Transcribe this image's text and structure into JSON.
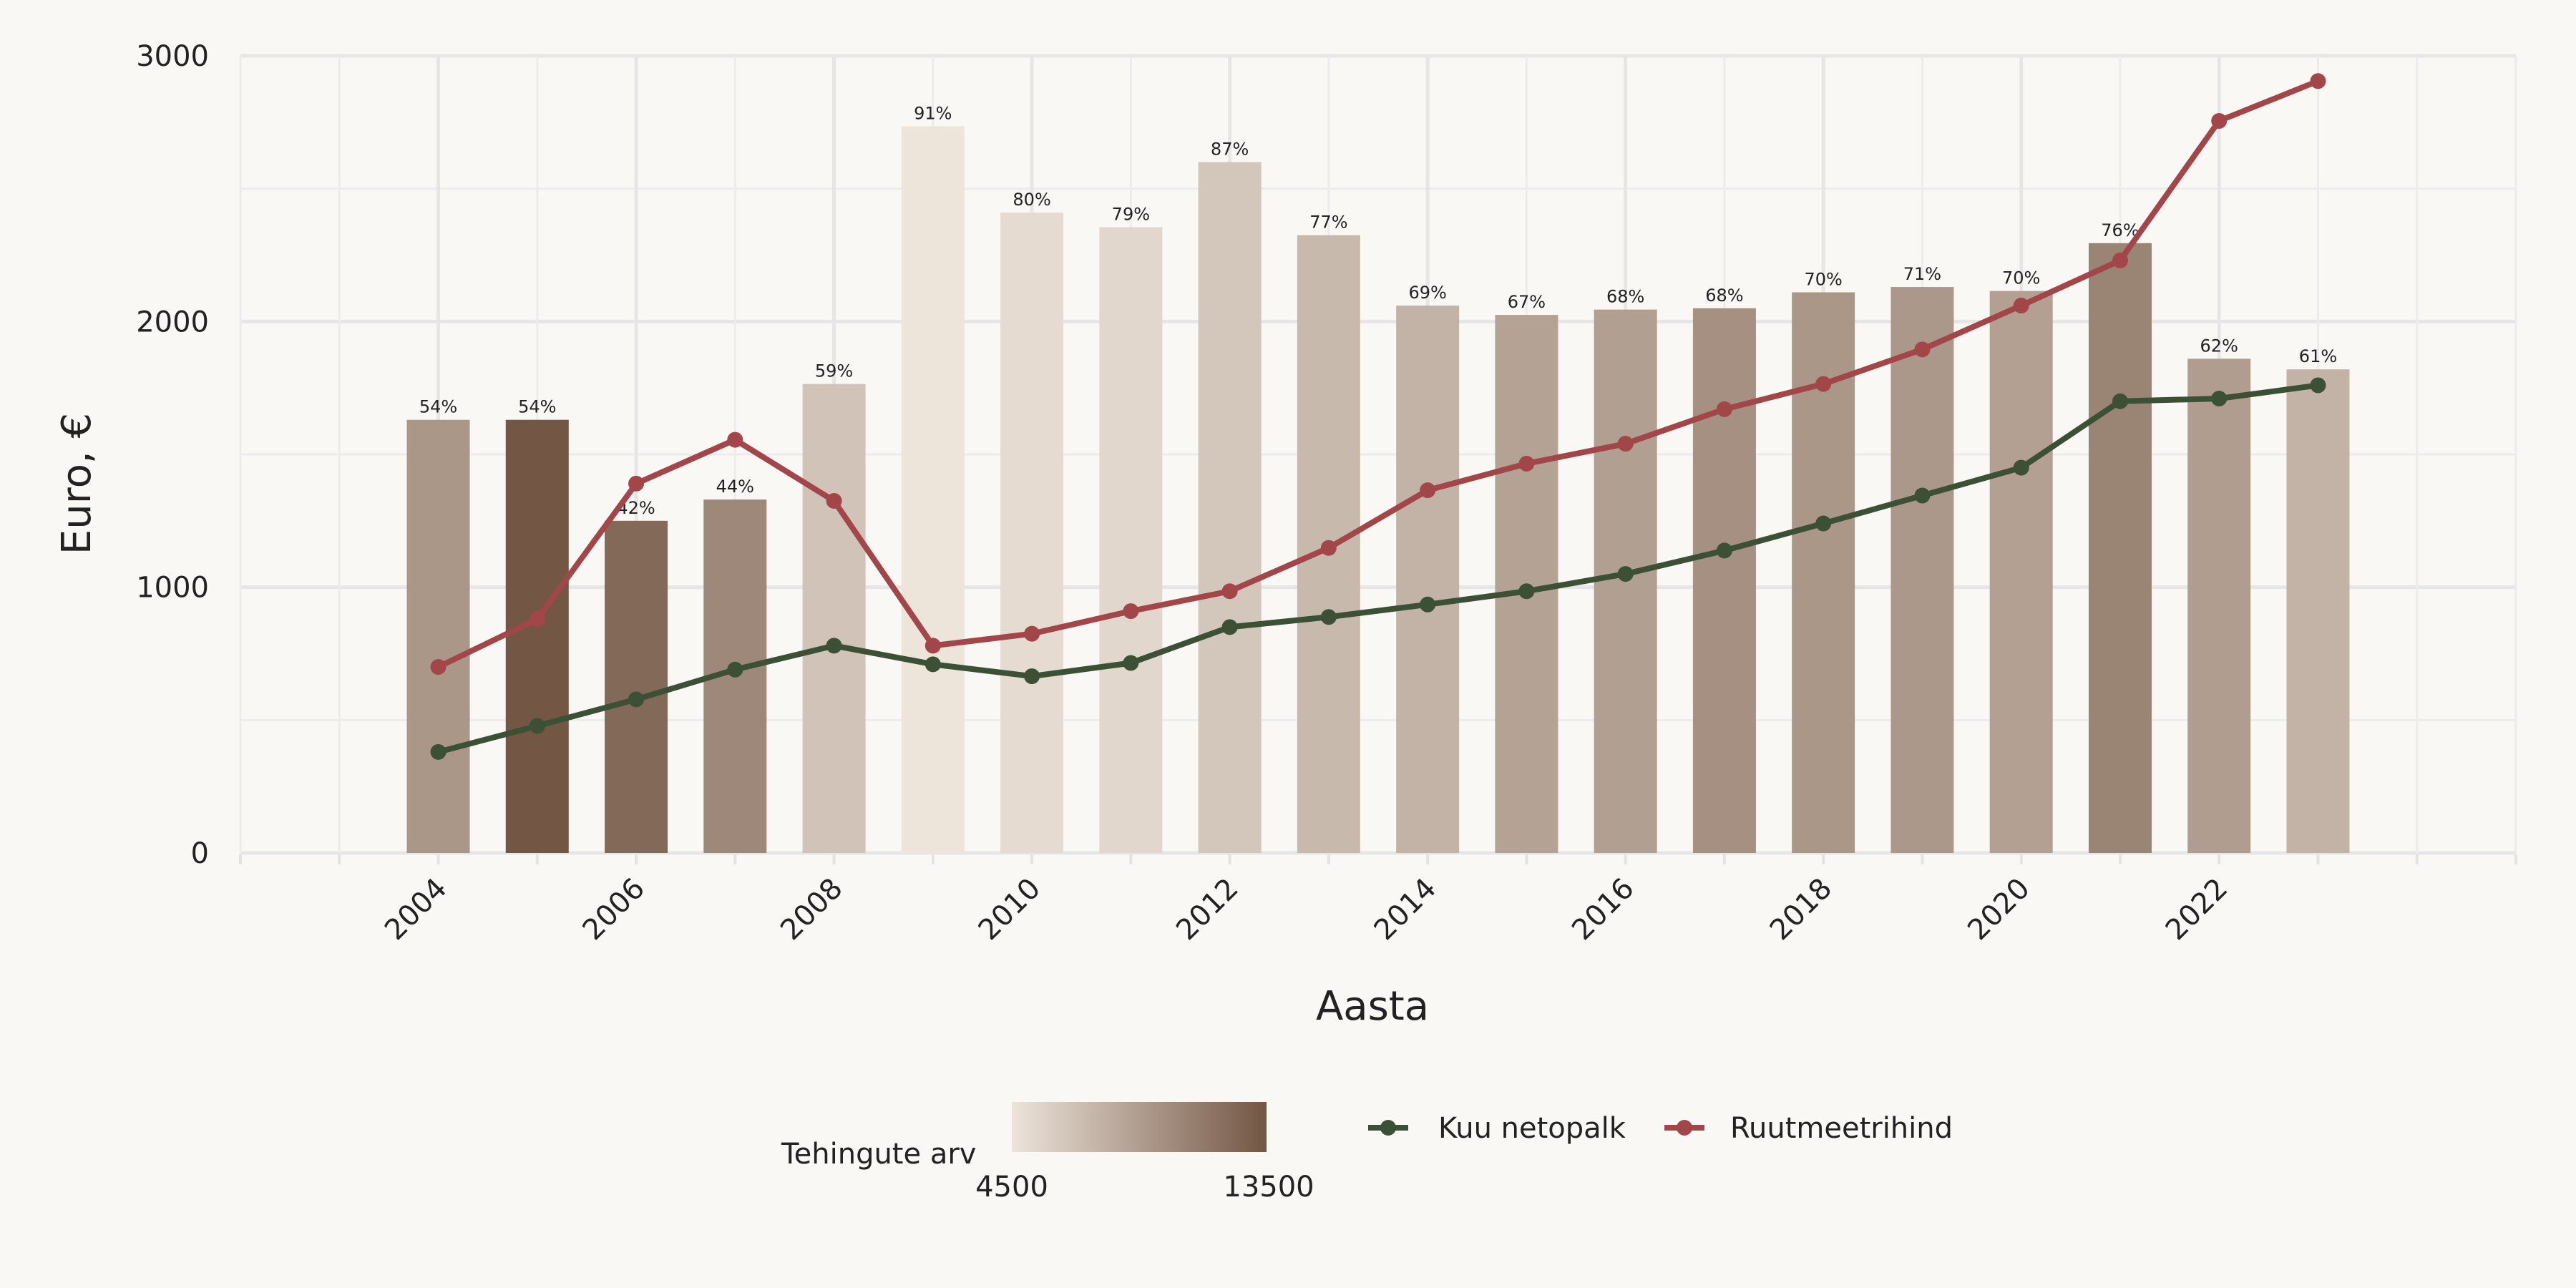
{
  "chart_data": {
    "type": "bar",
    "xlabel": "Aasta",
    "ylabel": "Euro, €",
    "ylim": [
      0,
      3000
    ],
    "y_ticks": [
      0,
      1000,
      2000,
      3000
    ],
    "x_ticks": [
      2004,
      2006,
      2008,
      2010,
      2012,
      2014,
      2016,
      2018,
      2020,
      2022
    ],
    "xlim": [
      2002,
      2025
    ],
    "grid": true,
    "x": [
      2004,
      2005,
      2006,
      2007,
      2008,
      2009,
      2010,
      2011,
      2012,
      2013,
      2014,
      2015,
      2016,
      2017,
      2018,
      2019,
      2020,
      2021,
      2022,
      2023
    ],
    "bars": {
      "values": [
        1630,
        1630,
        1250,
        1330,
        1765,
        2735,
        2410,
        2355,
        2600,
        2325,
        2060,
        2025,
        2045,
        2050,
        2110,
        2130,
        2115,
        2295,
        1860,
        1820
      ],
      "labels": [
        "54%",
        "54%",
        "42%",
        "44%",
        "59%",
        "91%",
        "80%",
        "79%",
        "87%",
        "77%",
        "69%",
        "67%",
        "68%",
        "68%",
        "70%",
        "71%",
        "70%",
        "76%",
        "62%",
        "61%"
      ],
      "transactions": [
        9400,
        13700,
        12300,
        10300,
        6600,
        4400,
        5100,
        5300,
        6400,
        7200,
        7600,
        8700,
        8900,
        9800,
        9400,
        9300,
        8800,
        10600,
        9000,
        7600
      ]
    },
    "series": [
      {
        "name": "Kuu netopalk",
        "color": "#3b5035",
        "values": [
          380,
          478,
          578,
          690,
          780,
          710,
          665,
          715,
          850,
          888,
          935,
          985,
          1050,
          1138,
          1240,
          1345,
          1450,
          1700,
          1710,
          1760
        ]
      },
      {
        "name": "Ruutmeetrihind",
        "color": "#a2464a",
        "values": [
          700,
          880,
          1390,
          1555,
          1325,
          780,
          825,
          910,
          985,
          1148,
          1365,
          1465,
          1540,
          1670,
          1765,
          1895,
          2060,
          2230,
          2755,
          2905
        ]
      }
    ],
    "colorbar": {
      "title": "Tehingute arv",
      "min": 4500,
      "max": 13500,
      "min_label": "4500",
      "max_label": "13500",
      "color_low": "#ede4da",
      "color_high": "#735644"
    },
    "legend_placement": "bottom"
  }
}
